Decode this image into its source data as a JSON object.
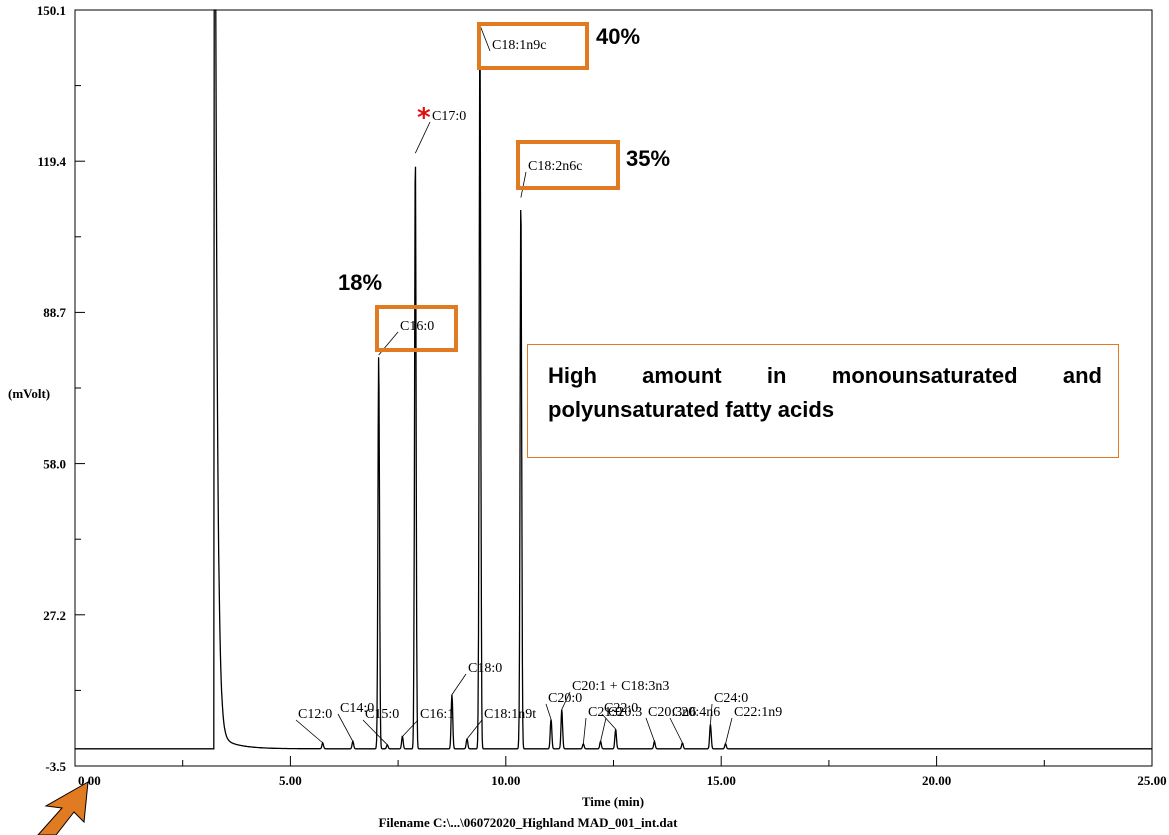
{
  "chart_data": {
    "type": "line",
    "title": "",
    "ylabel": "(mVolt)",
    "xlabel": "Time (min)",
    "filename": "Filename C:\\...\\06072020_Highland MAD_001_int.dat",
    "xlim": [
      0,
      25
    ],
    "ylim": [
      -3.5,
      150.1
    ],
    "x_ticks": [
      "0.00",
      "5.00",
      "10.00",
      "15.00",
      "20.00",
      "25.00"
    ],
    "y_ticks": [
      "-3.5",
      "27.2",
      "58.0",
      "88.7",
      "119.4",
      "150.1"
    ],
    "baseline": 0,
    "solvent_peak": {
      "x": 3.25,
      "height": 150.1
    },
    "peaks": [
      {
        "label": "C12:0",
        "x": 5.75,
        "height": 1.2
      },
      {
        "label": "C14:0",
        "x": 6.45,
        "height": 1.5
      },
      {
        "label": "C15:0",
        "x": 7.25,
        "height": 0.8
      },
      {
        "label": "C16:0",
        "x": 7.05,
        "height": 80,
        "highlight": true,
        "percent": "18%"
      },
      {
        "label": "C16:1",
        "x": 7.6,
        "height": 2.5
      },
      {
        "label": "C17:0",
        "x": 7.9,
        "height": 121,
        "marker": "*"
      },
      {
        "label": "C18:0",
        "x": 8.75,
        "height": 11
      },
      {
        "label": "C18:1n9t",
        "x": 9.1,
        "height": 2
      },
      {
        "label": "C18:1n9c",
        "x": 9.4,
        "height": 147,
        "highlight": true,
        "percent": "40%"
      },
      {
        "label": "C18:2n6c",
        "x": 10.35,
        "height": 112,
        "highlight": true,
        "percent": "35%"
      },
      {
        "label": "C20:0",
        "x": 11.05,
        "height": 6
      },
      {
        "label": "C20:1 + C18:3n3",
        "x": 11.3,
        "height": 8
      },
      {
        "label": "C21:0",
        "x": 11.8,
        "height": 1
      },
      {
        "label": "C22:0",
        "x": 12.55,
        "height": 4
      },
      {
        "label": "C20:3",
        "x": 12.2,
        "height": 1.5
      },
      {
        "label": "C20:3n6",
        "x": 13.45,
        "height": 1.5
      },
      {
        "label": "C20:4n6",
        "x": 14.1,
        "height": 1.2
      },
      {
        "label": "C24:0",
        "x": 14.75,
        "height": 5
      },
      {
        "label": "C22:1n9",
        "x": 15.1,
        "height": 1
      }
    ],
    "annotation": "High amount in monounsaturated and polyunsaturated fatty acids",
    "colors": {
      "trace": "#000000",
      "highlight": "#e07b22",
      "marker": "#e01010"
    }
  }
}
